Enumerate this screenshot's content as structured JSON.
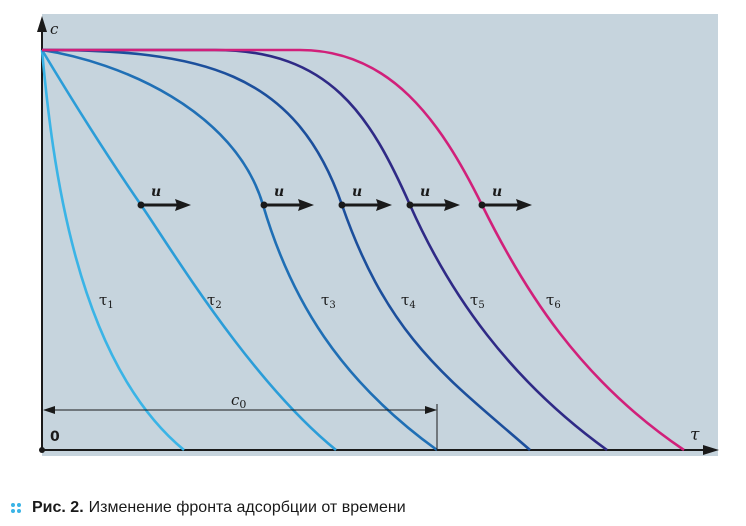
{
  "diagram": {
    "panel_color": "#c6d4dd",
    "axis_y_label": "c",
    "axis_x_label": "τ",
    "origin_label": "0",
    "dimension_label": "c",
    "dimension_sub": "0",
    "velocity_label": "u",
    "curves": [
      {
        "sym": "τ",
        "sub": "1",
        "color": "#3ab4e6"
      },
      {
        "sym": "τ",
        "sub": "2",
        "color": "#2b9dd8"
      },
      {
        "sym": "τ",
        "sub": "3",
        "color": "#1f6fb5"
      },
      {
        "sym": "τ",
        "sub": "4",
        "color": "#1c4f9c"
      },
      {
        "sym": "τ",
        "sub": "5",
        "color": "#2f2a86"
      },
      {
        "sym": "τ",
        "sub": "6",
        "color": "#d1207a"
      }
    ],
    "colors": {
      "dots": "#3ab4e6"
    }
  },
  "caption": {
    "figure_number": "Рис. 2.",
    "text": "Изменение фронта адсорбции от времени"
  }
}
